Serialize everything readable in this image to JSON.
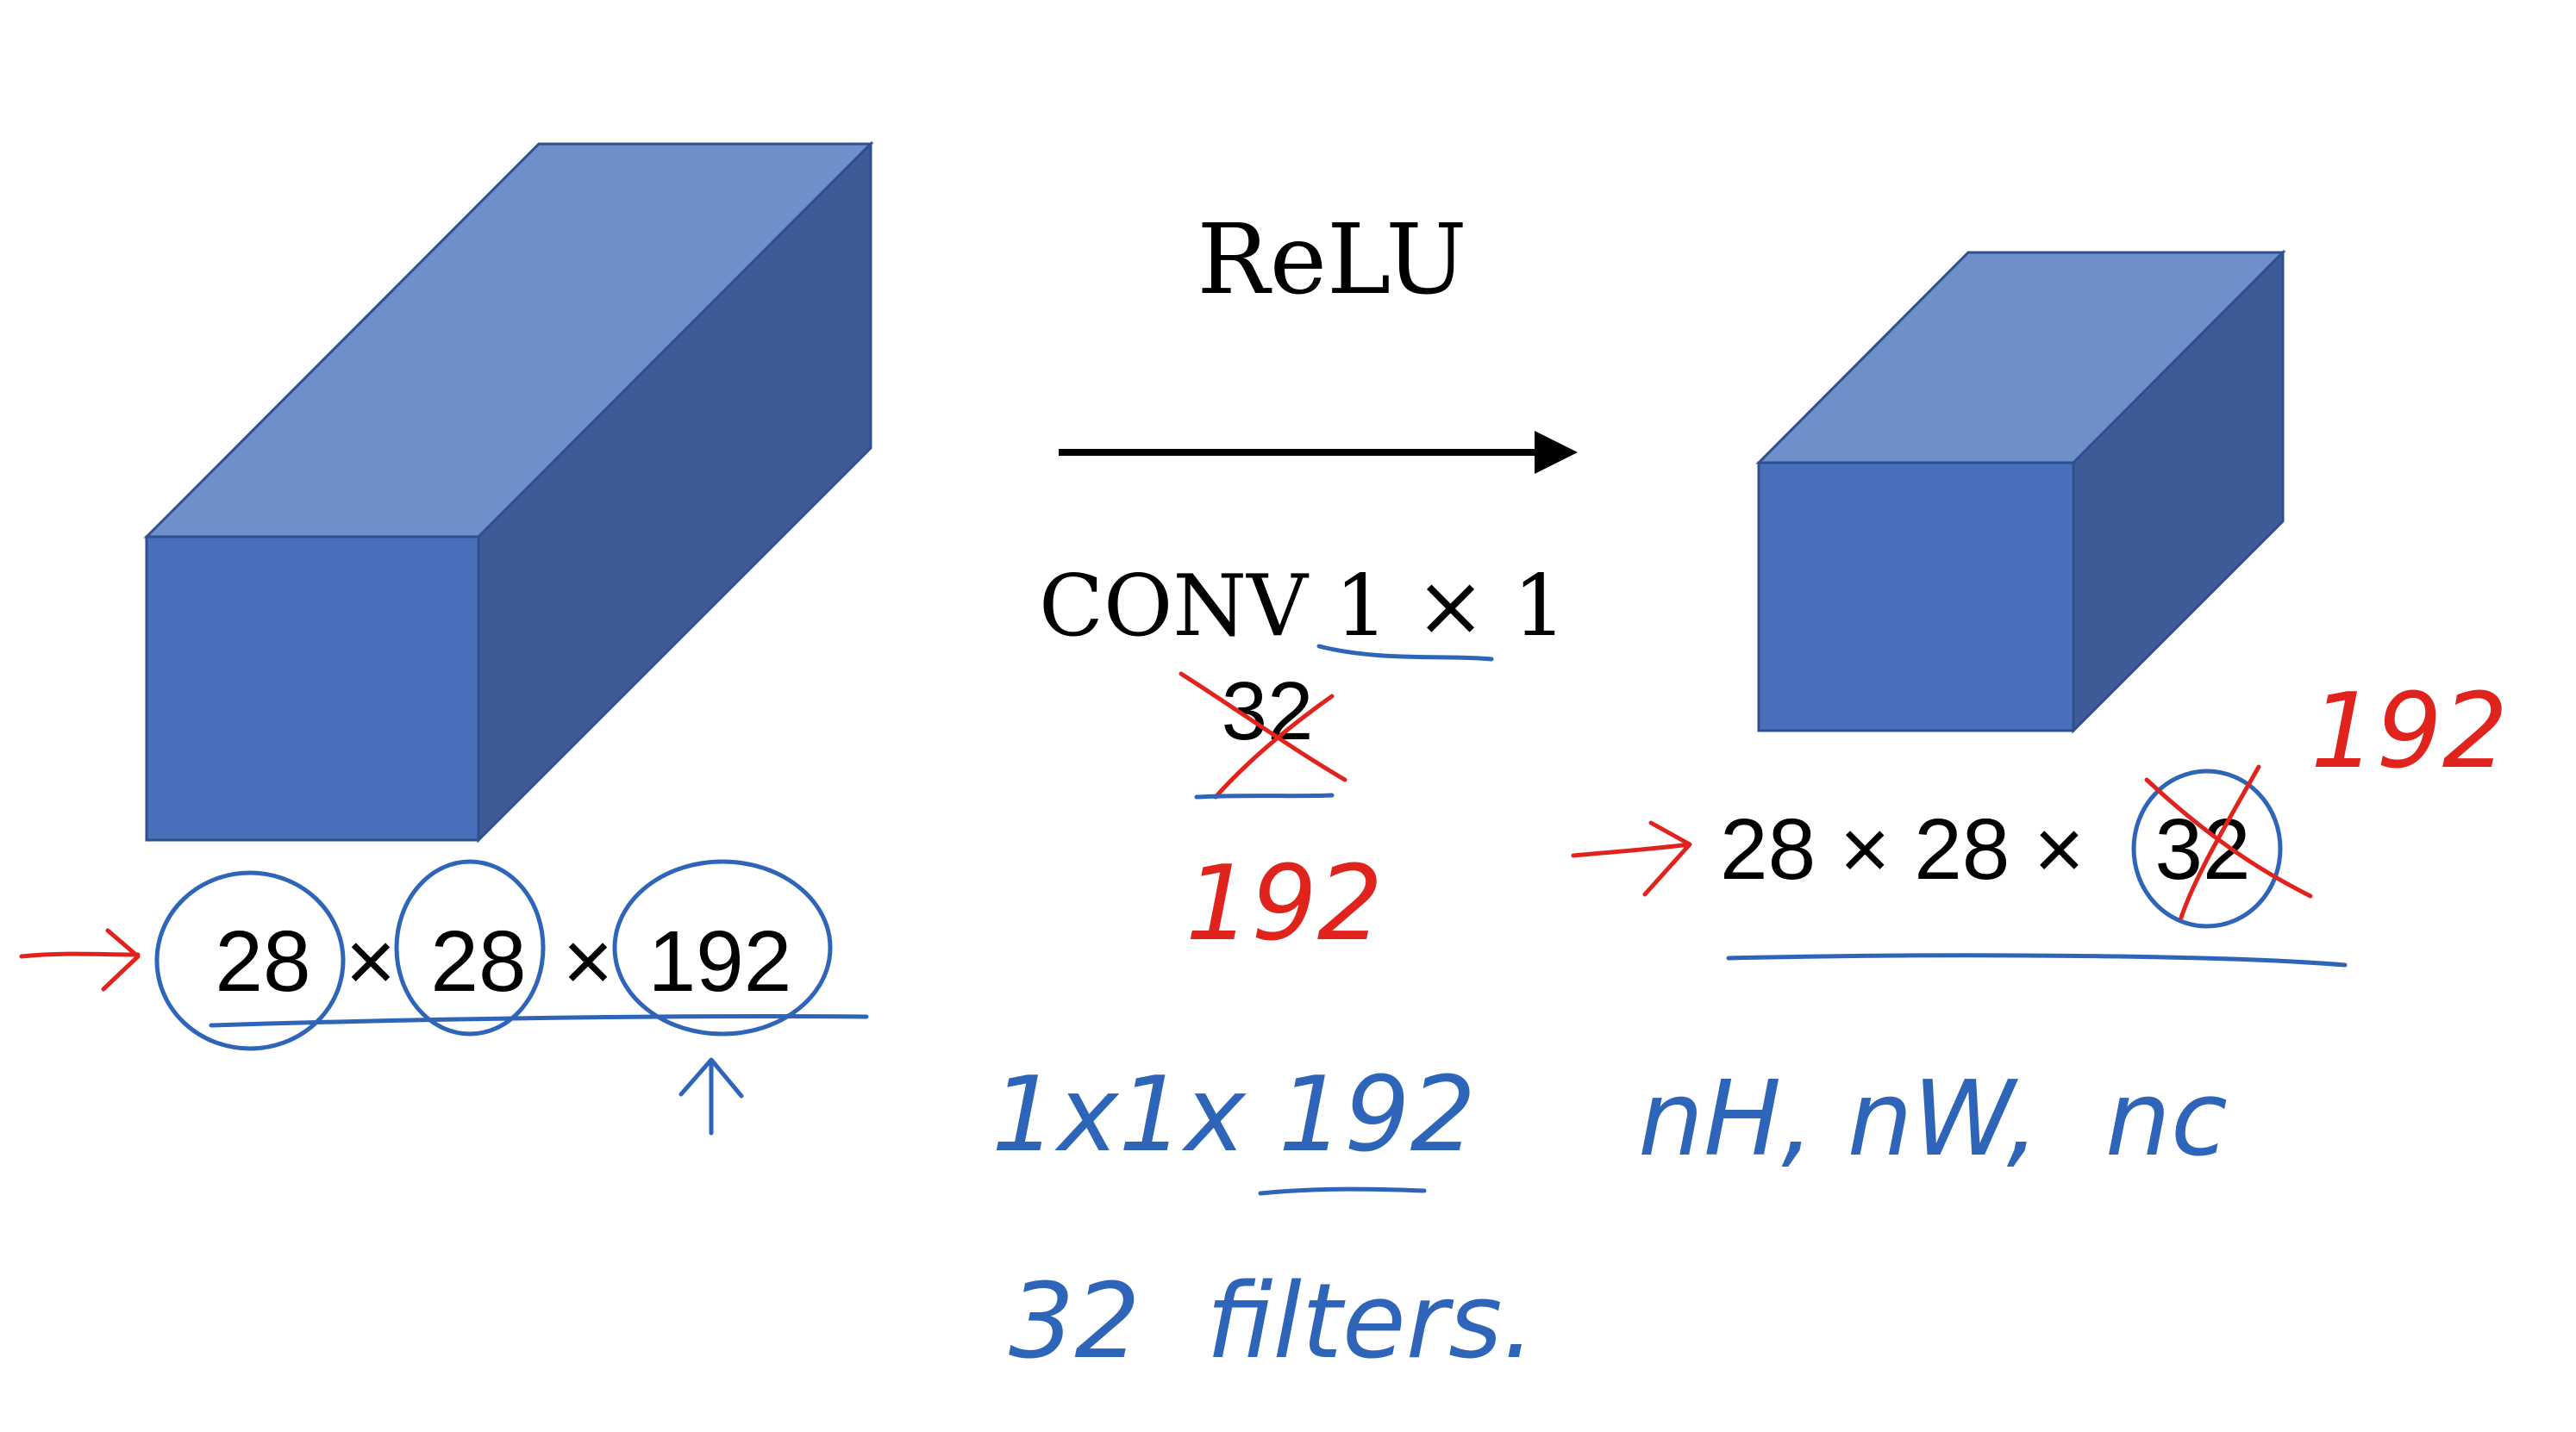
{
  "colors": {
    "block_front": "#4a70bb",
    "block_top": "#6f8fca",
    "block_side": "#3e5b98",
    "block_edge": "#2f4f8f",
    "ink_blue": "#2f65b8",
    "ink_red": "#e0231c"
  },
  "operation": {
    "activation": "ReLU",
    "conv_label": "CONV 1 × 1",
    "filter_count": "32",
    "filter_count_correction": "192"
  },
  "input_volume": {
    "height": "28",
    "times_1": "×",
    "width": "28",
    "times_2": "×",
    "channels": "192"
  },
  "output_volume": {
    "dimensions": "28 × 28 × ",
    "channels": "32",
    "channels_correction": "192"
  },
  "notes": {
    "filter_shape": "1x1x 192",
    "filters": "32  filters.",
    "dims_symbols": "nH, nW,  nc"
  }
}
